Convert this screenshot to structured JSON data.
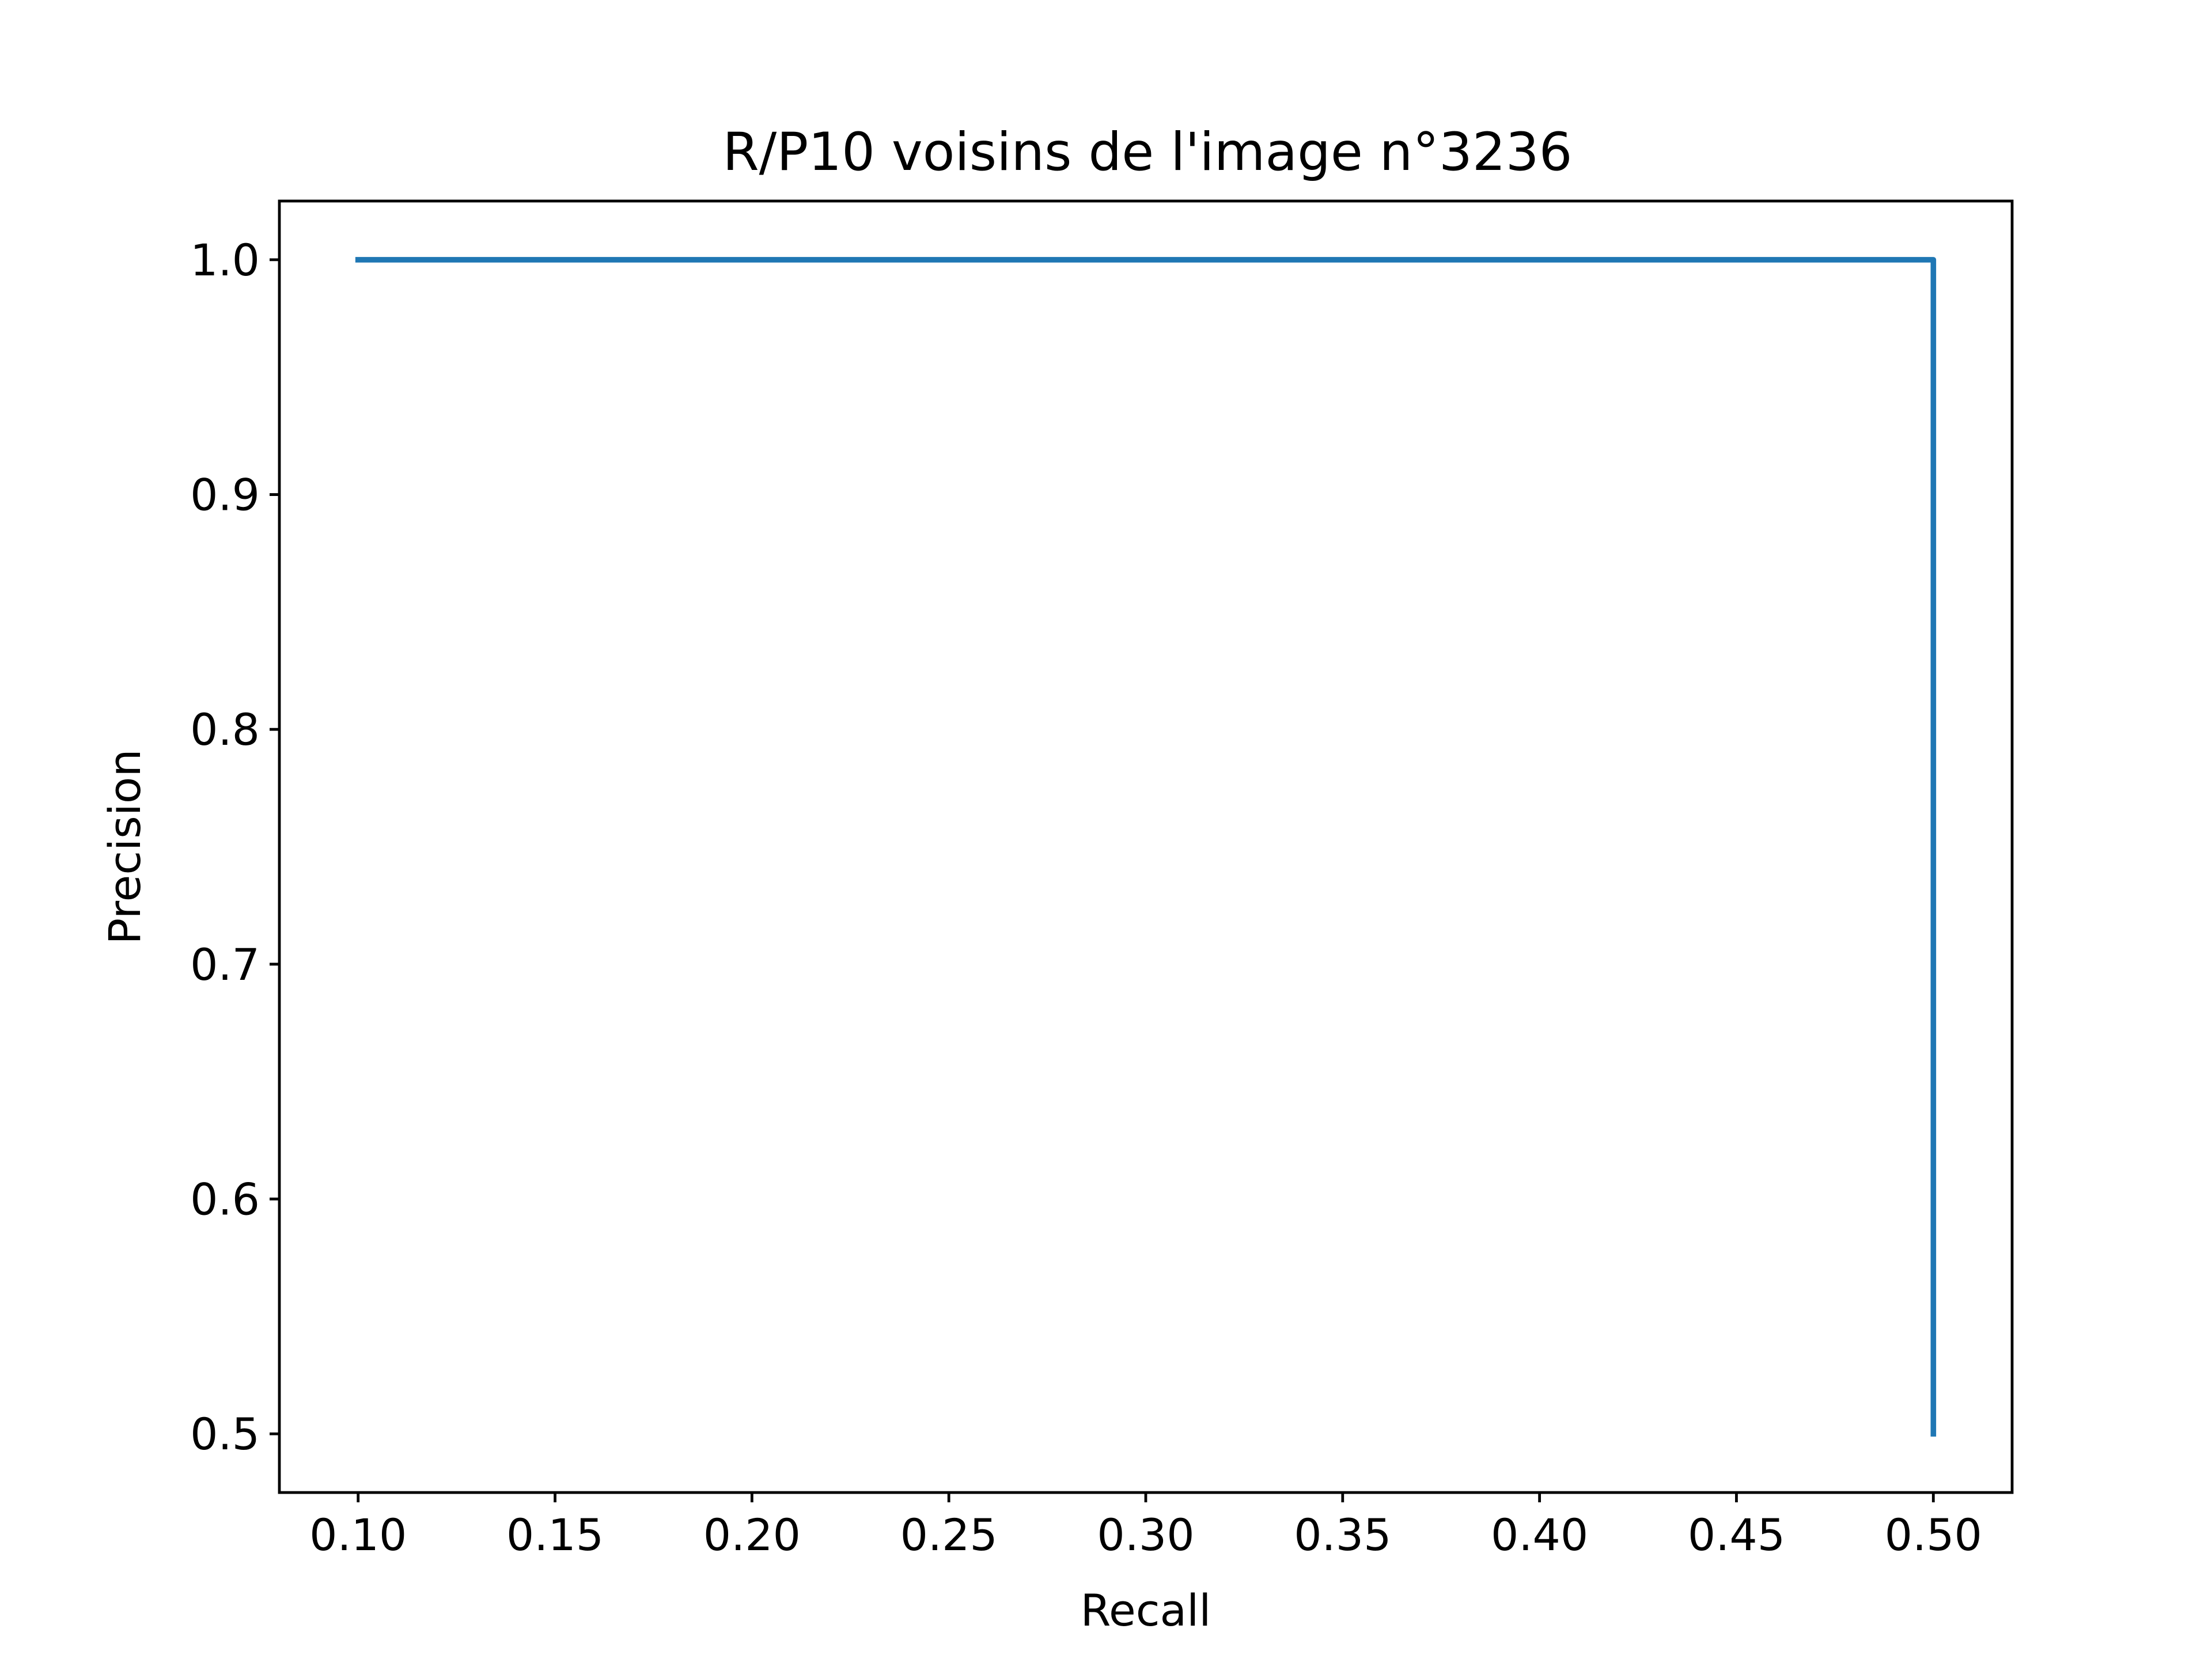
{
  "chart_data": {
    "type": "line",
    "title": "R/P10 voisins de l'image n°3236",
    "xlabel": "Recall",
    "ylabel": "Precision",
    "xlim": [
      0.08,
      0.52
    ],
    "ylim": [
      0.475,
      1.025
    ],
    "xticks": [
      0.1,
      0.15,
      0.2,
      0.25,
      0.3,
      0.35,
      0.4,
      0.45,
      0.5
    ],
    "xtick_labels": [
      "0.10",
      "0.15",
      "0.20",
      "0.25",
      "0.30",
      "0.35",
      "0.40",
      "0.45",
      "0.50"
    ],
    "yticks": [
      0.5,
      0.6,
      0.7,
      0.8,
      0.9,
      1.0
    ],
    "ytick_labels": [
      "0.5",
      "0.6",
      "0.7",
      "0.8",
      "0.9",
      "1.0"
    ],
    "grid": false,
    "series": [
      {
        "color": "#1f77b4",
        "x": [
          0.1,
          0.2,
          0.3,
          0.4,
          0.5,
          0.5,
          0.5,
          0.5,
          0.5,
          0.5
        ],
        "y": [
          1.0,
          1.0,
          1.0,
          1.0,
          1.0,
          0.833,
          0.714,
          0.625,
          0.556,
          0.5
        ]
      }
    ]
  }
}
